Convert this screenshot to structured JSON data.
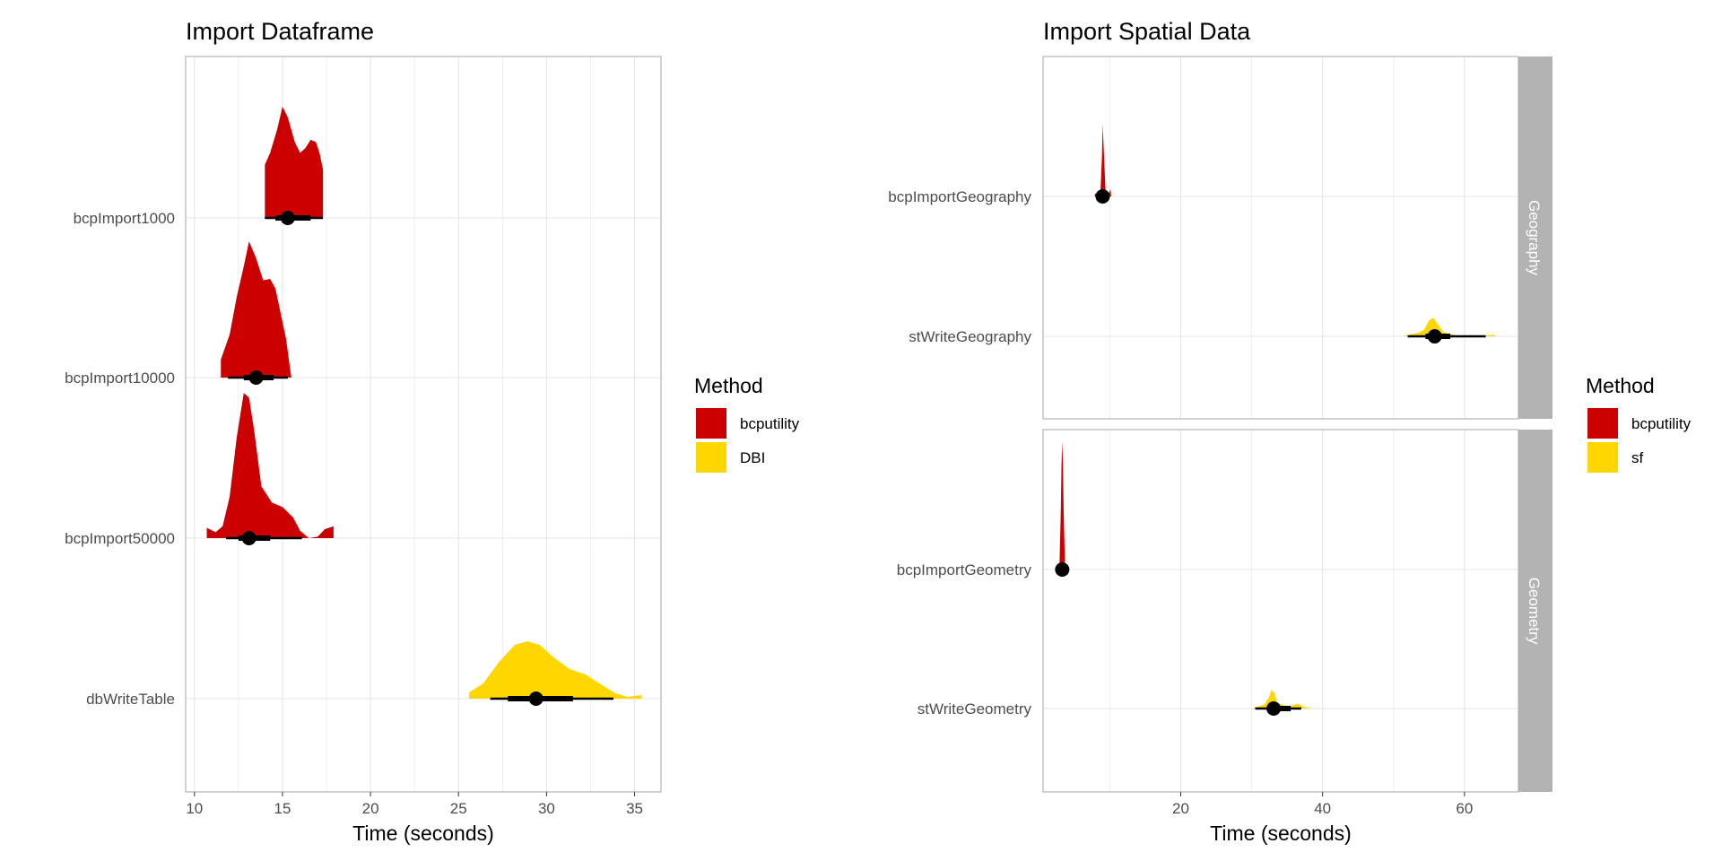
{
  "colors": {
    "bcputility": "#cc0000",
    "DBI": "#ffd700",
    "sf": "#ffd700",
    "grid": "#e5e5e5",
    "strip": "#b3b3b3",
    "point": "#000000"
  },
  "chart_data": [
    {
      "type": "halfeye",
      "title": "Import Dataframe",
      "xlabel": "Time (seconds)",
      "ylabel": "",
      "xlim": [
        9.5,
        36.5
      ],
      "xticks": [
        10,
        15,
        20,
        25,
        30,
        35
      ],
      "grid": true,
      "legend": {
        "title": "Method",
        "position": "right",
        "entries": [
          {
            "label": "bcputility",
            "color": "#cc0000"
          },
          {
            "label": "DBI",
            "color": "#ffd700"
          }
        ]
      },
      "categories": [
        "bcpImport1000",
        "bcpImport10000",
        "bcpImport50000",
        "dbWriteTable"
      ],
      "series": [
        {
          "category": "bcpImport1000",
          "method": "bcputility",
          "median": 15.3,
          "interval_66": [
            14.6,
            16.6
          ],
          "interval_95": [
            14.0,
            17.3
          ],
          "density": [
            [
              14.0,
              0.25
            ],
            [
              14.0,
              0.45
            ],
            [
              14.3,
              0.55
            ],
            [
              14.7,
              0.75
            ],
            [
              15.0,
              0.94
            ],
            [
              15.3,
              0.85
            ],
            [
              15.7,
              0.64
            ],
            [
              16.0,
              0.55
            ],
            [
              16.3,
              0.59
            ],
            [
              16.6,
              0.66
            ],
            [
              16.9,
              0.64
            ],
            [
              17.1,
              0.55
            ],
            [
              17.3,
              0.41
            ],
            [
              17.3,
              0.0
            ]
          ]
        },
        {
          "category": "bcpImport10000",
          "method": "bcputility",
          "median": 13.5,
          "interval_66": [
            12.8,
            14.5
          ],
          "interval_95": [
            11.9,
            15.3
          ],
          "density": [
            [
              11.5,
              0.13
            ],
            [
              12.0,
              0.31
            ],
            [
              12.4,
              0.58
            ],
            [
              12.8,
              0.8
            ],
            [
              13.1,
              0.98
            ],
            [
              13.5,
              0.86
            ],
            [
              13.9,
              0.7
            ],
            [
              14.3,
              0.71
            ],
            [
              14.6,
              0.64
            ],
            [
              14.9,
              0.46
            ],
            [
              15.2,
              0.28
            ],
            [
              15.5,
              0.0
            ]
          ]
        },
        {
          "category": "bcpImport50000",
          "method": "bcputility",
          "median": 13.1,
          "interval_66": [
            12.5,
            14.3
          ],
          "interval_95": [
            11.8,
            16.1
          ],
          "density": [
            [
              10.7,
              0.07
            ],
            [
              11.2,
              0.04
            ],
            [
              11.6,
              0.08
            ],
            [
              12.0,
              0.28
            ],
            [
              12.4,
              0.68
            ],
            [
              12.8,
              0.98
            ],
            [
              13.1,
              0.95
            ],
            [
              13.4,
              0.72
            ],
            [
              13.8,
              0.35
            ],
            [
              14.4,
              0.24
            ],
            [
              15.0,
              0.21
            ],
            [
              15.6,
              0.14
            ],
            [
              16.0,
              0.05
            ],
            [
              16.5,
              0.0
            ],
            [
              17.0,
              0.01
            ],
            [
              17.4,
              0.06
            ],
            [
              17.9,
              0.08
            ],
            [
              17.9,
              0.0
            ]
          ]
        },
        {
          "category": "dbWriteTable",
          "method": "DBI",
          "median": 29.4,
          "interval_66": [
            27.8,
            31.5
          ],
          "interval_95": [
            26.8,
            33.8
          ],
          "density": [
            [
              25.6,
              0.07
            ],
            [
              26.4,
              0.17
            ],
            [
              27.3,
              0.41
            ],
            [
              28.2,
              0.6
            ],
            [
              28.9,
              0.64
            ],
            [
              29.6,
              0.6
            ],
            [
              30.4,
              0.46
            ],
            [
              31.3,
              0.33
            ],
            [
              32.2,
              0.27
            ],
            [
              33.0,
              0.17
            ],
            [
              33.9,
              0.06
            ],
            [
              34.6,
              0.02
            ],
            [
              35.4,
              0.04
            ],
            [
              35.4,
              0.0
            ]
          ]
        }
      ]
    },
    {
      "type": "halfeye",
      "title": "Import Spatial Data",
      "xlabel": "Time (seconds)",
      "ylabel": "",
      "xlim": [
        0.6,
        67.6
      ],
      "xticks": [
        20,
        40,
        60
      ],
      "grid": true,
      "facets": [
        "Geography",
        "Geometry"
      ],
      "legend": {
        "title": "Method",
        "position": "right",
        "entries": [
          {
            "label": "bcputility",
            "color": "#cc0000"
          },
          {
            "label": "sf",
            "color": "#ffd700"
          }
        ]
      },
      "series": [
        {
          "facet": "Geography",
          "category": "bcpImportGeography",
          "method": "bcputility",
          "median": 9.0,
          "interval_66": [
            8.8,
            9.5
          ],
          "interval_95": [
            8.2,
            10.0
          ],
          "density": [
            [
              7.9,
              0.04
            ],
            [
              8.4,
              0.02
            ],
            [
              8.7,
              0.1
            ],
            [
              8.9,
              0.55
            ],
            [
              9.0,
              1.0
            ],
            [
              9.2,
              0.55
            ],
            [
              9.4,
              0.08
            ],
            [
              9.8,
              0.03
            ],
            [
              10.1,
              0.1
            ],
            [
              10.2,
              0.0
            ]
          ]
        },
        {
          "facet": "Geography",
          "category": "stWriteGeography",
          "method": "sf",
          "median": 55.8,
          "interval_66": [
            54.5,
            58.0
          ],
          "interval_95": [
            52.0,
            63.0
          ],
          "density": [
            [
              51.5,
              0.01
            ],
            [
              52.5,
              0.03
            ],
            [
              53.5,
              0.05
            ],
            [
              54.3,
              0.09
            ],
            [
              55.0,
              0.22
            ],
            [
              55.6,
              0.26
            ],
            [
              56.2,
              0.17
            ],
            [
              57.0,
              0.06
            ],
            [
              58.5,
              0.02
            ],
            [
              60.0,
              0.0
            ],
            [
              62.5,
              0.01
            ],
            [
              64.0,
              0.02
            ],
            [
              64.5,
              0.0
            ]
          ]
        },
        {
          "facet": "Geometry",
          "category": "bcpImportGeometry",
          "method": "bcputility",
          "median": 3.3,
          "interval_66": [
            3.2,
            3.4
          ],
          "interval_95": [
            3.1,
            3.5
          ],
          "density": [
            [
              2.9,
              0.0
            ],
            [
              3.1,
              0.5
            ],
            [
              3.2,
              0.9
            ],
            [
              3.3,
              1.1
            ],
            [
              3.4,
              0.9
            ],
            [
              3.5,
              0.5
            ],
            [
              3.7,
              0.0
            ]
          ]
        },
        {
          "facet": "Geometry",
          "category": "stWriteGeometry",
          "method": "sf",
          "median": 33.1,
          "interval_66": [
            32.2,
            35.5
          ],
          "interval_95": [
            30.5,
            37.0
          ],
          "density": [
            [
              30.2,
              0.01
            ],
            [
              31.0,
              0.03
            ],
            [
              31.8,
              0.06
            ],
            [
              32.4,
              0.15
            ],
            [
              32.8,
              0.26
            ],
            [
              33.2,
              0.22
            ],
            [
              33.6,
              0.08
            ],
            [
              34.4,
              0.05
            ],
            [
              35.2,
              0.03
            ],
            [
              35.9,
              0.05
            ],
            [
              36.5,
              0.07
            ],
            [
              37.2,
              0.03
            ],
            [
              38.0,
              0.01
            ],
            [
              38.8,
              0.0
            ]
          ]
        }
      ]
    }
  ]
}
